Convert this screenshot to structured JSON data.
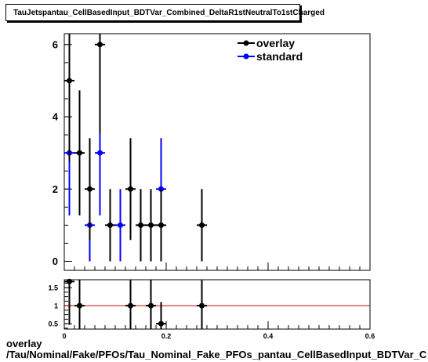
{
  "title": "TauJetspantau_CellBasedInput_BDTVar_Combined_DeltaR1stNeutralTo1stCharged",
  "footer": {
    "line1": "overlay",
    "line2": "/Tau/Nominal/Fake/PFOs/Tau_Nominal_Fake_PFOs_pantau_CellBasedInput_BDTVar_C"
  },
  "colors": {
    "overlay": "#000000",
    "standard": "#0000ff",
    "ratio_line": "#cc0000"
  },
  "chart_data": [
    {
      "type": "scatter",
      "title": "TauJetspantau_CellBasedInput_BDTVar_Combined_DeltaR1stNeutralTo1stCharged",
      "xlim": [
        0,
        0.6
      ],
      "ylim": [
        -0.25,
        6.3
      ],
      "y_ticks": [
        0,
        2,
        4,
        6
      ],
      "x_ticks": [
        0,
        0.2,
        0.4,
        0.6
      ],
      "x_tick_labels": [
        "0",
        "0.2",
        "0.4",
        "0.6"
      ],
      "grid": false,
      "legend_position": "top-right",
      "series": [
        {
          "name": "overlay",
          "color": "#000000",
          "points": [
            {
              "x": 0.01,
              "y": 5,
              "yerr": 2.24
            },
            {
              "x": 0.03,
              "y": 3,
              "yerr": 1.73
            },
            {
              "x": 0.05,
              "y": 2,
              "yerr": 1.41
            },
            {
              "x": 0.07,
              "y": 6,
              "yerr": 2.45
            },
            {
              "x": 0.09,
              "y": 1,
              "yerr": 1.0
            },
            {
              "x": 0.13,
              "y": 2,
              "yerr": 1.41
            },
            {
              "x": 0.15,
              "y": 1,
              "yerr": 1.0
            },
            {
              "x": 0.17,
              "y": 1,
              "yerr": 1.0
            },
            {
              "x": 0.19,
              "y": 1,
              "yerr": 1.0
            },
            {
              "x": 0.27,
              "y": 1,
              "yerr": 1.0
            }
          ]
        },
        {
          "name": "standard",
          "color": "#0000ff",
          "points": [
            {
              "x": 0.01,
              "y": 3,
              "yerr": 1.73
            },
            {
              "x": 0.05,
              "y": 1,
              "yerr": 1.0
            },
            {
              "x": 0.07,
              "y": 3,
              "yerr": 1.73
            },
            {
              "x": 0.11,
              "y": 1,
              "yerr": 1.0
            },
            {
              "x": 0.19,
              "y": 2,
              "yerr": 1.41
            }
          ]
        }
      ]
    },
    {
      "type": "scatter",
      "xlim": [
        0,
        0.6
      ],
      "ylim": [
        0.35,
        1.72
      ],
      "y_ticks": [
        0.5,
        1,
        1.5
      ],
      "y_tick_labels": [
        "0.5",
        "1",
        "1.5"
      ],
      "x_ticks": [
        0,
        0.2,
        0.4,
        0.6
      ],
      "x_tick_labels": [
        "0",
        "0.2",
        "0.4",
        "0.6"
      ],
      "reference_line": 1,
      "series": [
        {
          "color": "#000000",
          "points": [
            {
              "x": 0.01,
              "y": 1.67,
              "yerr": 1.2
            },
            {
              "x": 0.03,
              "y": 1.0,
              "yerr": 0.8
            },
            {
              "x": 0.13,
              "y": 1.0,
              "yerr": 0.8
            },
            {
              "x": 0.17,
              "y": 1.0,
              "yerr": 0.8
            },
            {
              "x": 0.19,
              "y": 0.5,
              "yerr": 0.6
            },
            {
              "x": 0.27,
              "y": 1.0,
              "yerr": 0.8
            }
          ]
        }
      ]
    }
  ]
}
